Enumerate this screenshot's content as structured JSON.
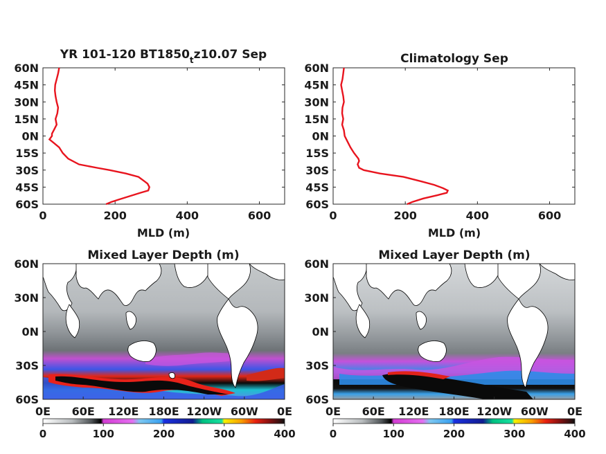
{
  "chart_data": [
    {
      "type": "line",
      "title_main": "YR 101-120 BT1850",
      "title_sub": "t",
      "title_rest": "z10.07 Sep",
      "xlabel": "MLD (m)",
      "xlim": [
        0,
        670
      ],
      "ylim": [
        -60,
        60
      ],
      "xticks": [
        "0",
        "200",
        "400",
        "600"
      ],
      "yticks": [
        "60N",
        "45N",
        "30N",
        "15N",
        "0N",
        "15S",
        "30S",
        "45S",
        "60S"
      ],
      "color": "#e8141e",
      "series": [
        {
          "lat": [
            60,
            55,
            50,
            45,
            40,
            35,
            30,
            25,
            20,
            15,
            10,
            5,
            2,
            0,
            -3,
            -6,
            -10,
            -15,
            -20,
            -25,
            -28,
            -30,
            -33,
            -36,
            -40,
            -42,
            -45,
            -48,
            -50,
            -53,
            -56,
            -58,
            -60
          ],
          "mld": [
            45,
            42,
            38,
            34,
            33,
            35,
            38,
            42,
            40,
            35,
            38,
            30,
            25,
            25,
            18,
            30,
            45,
            55,
            70,
            100,
            150,
            185,
            230,
            265,
            282,
            290,
            295,
            292,
            270,
            240,
            210,
            190,
            175
          ]
        }
      ]
    },
    {
      "type": "line",
      "title": "Climatology Sep",
      "xlabel": "MLD (m)",
      "xlim": [
        0,
        670
      ],
      "ylim": [
        -60,
        60
      ],
      "xticks": [
        "0",
        "200",
        "400",
        "600"
      ],
      "yticks": [
        "60N",
        "45N",
        "30N",
        "15N",
        "0N",
        "15S",
        "30S",
        "45S",
        "60S"
      ],
      "color": "#e8141e",
      "series": [
        {
          "lat": [
            60,
            55,
            50,
            45,
            40,
            35,
            30,
            25,
            20,
            15,
            10,
            5,
            0,
            -5,
            -10,
            -15,
            -20,
            -22,
            -25,
            -28,
            -30,
            -33,
            -36,
            -40,
            -43,
            -46,
            -48,
            -50,
            -52,
            -55,
            -58,
            -60
          ],
          "mld": [
            30,
            28,
            26,
            22,
            25,
            28,
            30,
            26,
            25,
            28,
            25,
            30,
            32,
            40,
            48,
            58,
            70,
            72,
            68,
            72,
            85,
            130,
            195,
            245,
            280,
            305,
            318,
            315,
            290,
            250,
            220,
            205
          ]
        }
      ]
    },
    {
      "type": "heatmap",
      "title": "Mixed Layer Depth (m)",
      "xticks": [
        "0E",
        "60E",
        "120E",
        "180E",
        "120W",
        "60W",
        "0E"
      ],
      "yticks": [
        "60N",
        "30N",
        "0N",
        "30S",
        "60S"
      ],
      "colorbar": {
        "ticks": [
          "0",
          "100",
          "200",
          "300",
          "400"
        ],
        "range": [
          0,
          400
        ]
      }
    },
    {
      "type": "heatmap",
      "title": "Mixed Layer Depth (m)",
      "xticks": [
        "0E",
        "60E",
        "120E",
        "180E",
        "120W",
        "60W",
        "0E"
      ],
      "yticks": [
        "60N",
        "30N",
        "0N",
        "30S",
        "60S"
      ],
      "colorbar": {
        "ticks": [
          "0",
          "100",
          "200",
          "300",
          "400"
        ],
        "range": [
          0,
          400
        ]
      }
    }
  ]
}
